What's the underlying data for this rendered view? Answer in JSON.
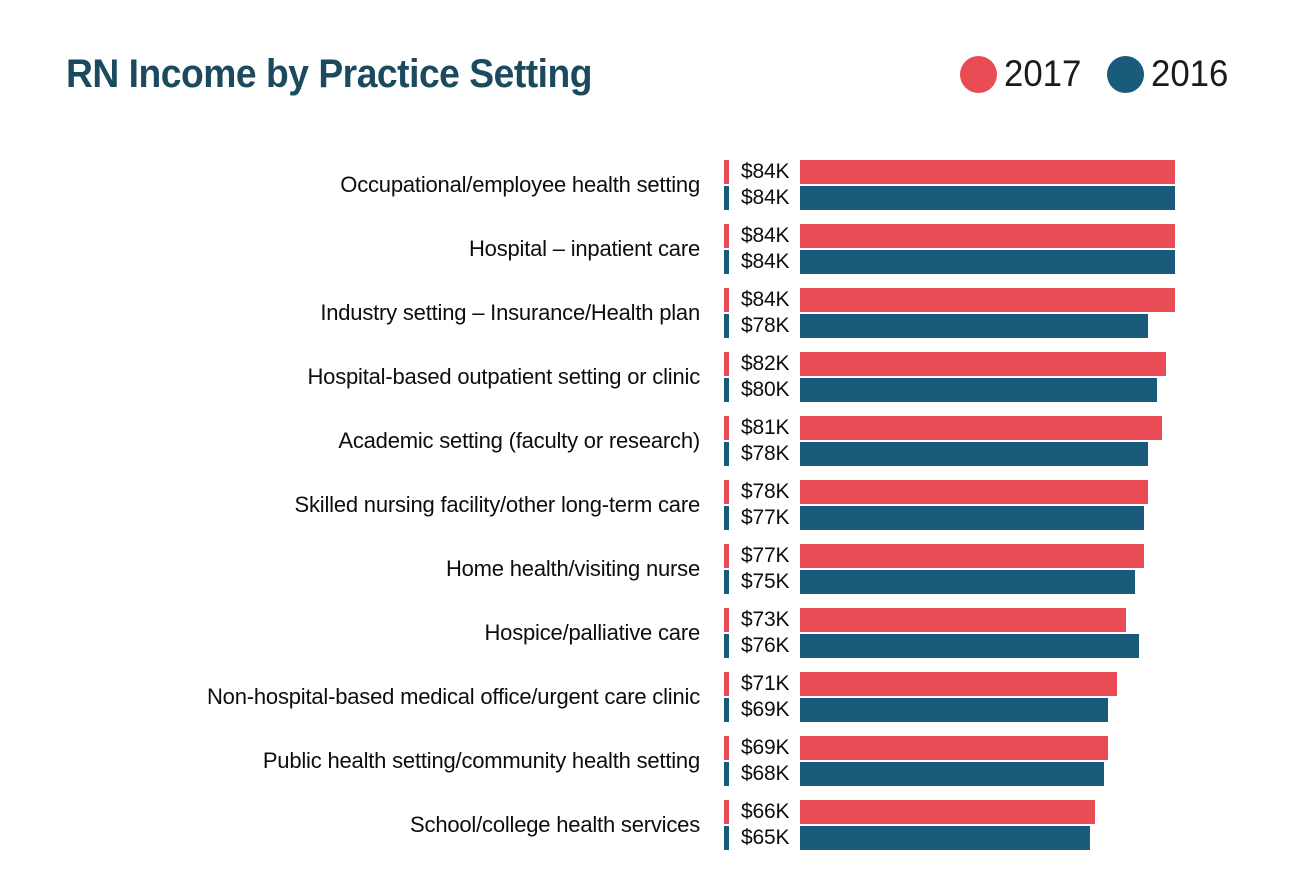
{
  "page": {
    "background": "#ffffff"
  },
  "header": {
    "title": "RN Income by Practice Setting",
    "title_color": "#1B4A5E"
  },
  "legend": {
    "items": [
      {
        "label": "2017",
        "color": "#E94C54"
      },
      {
        "label": "2016",
        "color": "#1A5A7B"
      }
    ]
  },
  "chart_data": {
    "type": "bar",
    "orientation": "horizontal",
    "title": "RN Income by Practice Setting",
    "unit": "USD thousands per year",
    "grid": false,
    "legend_position": "top-right",
    "value_axis_range": [
      0,
      84
    ],
    "categories": [
      "Occupational/employee health setting",
      "Hospital – inpatient care",
      "Industry setting – Insurance/Health plan",
      "Hospital-based outpatient setting or clinic",
      "Academic setting (faculty or research)",
      "Skilled nursing facility/other long-term care",
      "Home health/visiting nurse",
      "Hospice/palliative care",
      "Non-hospital-based medical office/urgent care clinic",
      "Public health setting/community health setting",
      "School/college health services"
    ],
    "series": [
      {
        "name": "2017",
        "color": "#E94C54",
        "values": [
          84,
          84,
          84,
          82,
          81,
          78,
          77,
          73,
          71,
          69,
          66
        ],
        "display_values": [
          "$84K",
          "$84K",
          "$84K",
          "$82K",
          "$81K",
          "$78K",
          "$77K",
          "$73K",
          "$71K",
          "$69K",
          "$66K"
        ]
      },
      {
        "name": "2016",
        "color": "#1A5A7B",
        "values": [
          84,
          84,
          78,
          80,
          78,
          77,
          75,
          76,
          69,
          68,
          65
        ],
        "display_values": [
          "$84K",
          "$84K",
          "$78K",
          "$80K",
          "$78K",
          "$77K",
          "$75K",
          "$76K",
          "$69K",
          "$68K",
          "$65K"
        ]
      }
    ]
  }
}
